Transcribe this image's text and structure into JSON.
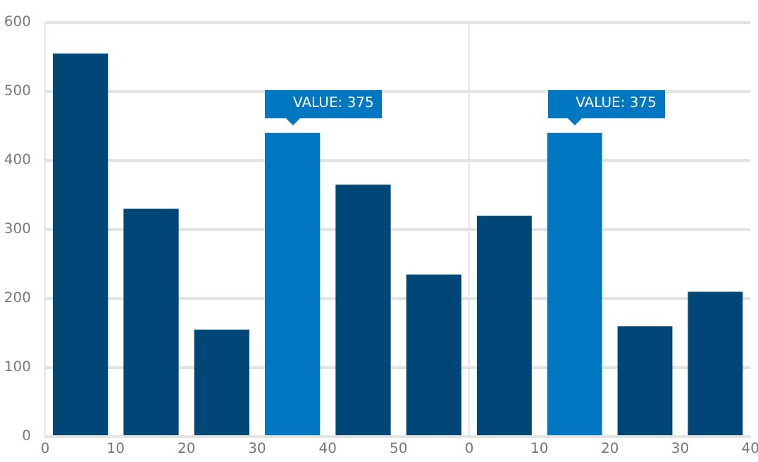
{
  "chart_data": [
    {
      "type": "histogram",
      "bins": [
        0,
        10,
        20,
        30,
        40,
        50,
        60
      ],
      "values": [
        555,
        330,
        155,
        440,
        365,
        235
      ],
      "colors": [
        "#004677",
        "#004677",
        "#004677",
        "#0077c0",
        "#004677",
        "#004677"
      ],
      "xlim": [
        0,
        60
      ],
      "xticks": [
        0,
        10,
        20,
        30,
        40,
        50
      ],
      "ylim": [
        0,
        600
      ],
      "yticks": [
        0,
        100,
        200,
        300,
        400,
        500,
        600
      ],
      "grid": "y",
      "annotations": [
        {
          "text": "VALUE: 375",
          "x": 35,
          "y": 440
        }
      ]
    },
    {
      "type": "histogram",
      "bins": [
        0,
        10,
        20,
        30,
        40
      ],
      "values": [
        320,
        440,
        160,
        210
      ],
      "colors": [
        "#004677",
        "#0077c0",
        "#004677",
        "#004677"
      ],
      "xlim": [
        0,
        40
      ],
      "xticks": [
        0,
        10,
        20,
        30,
        40
      ],
      "ylim": [
        0,
        600
      ],
      "yticks": [
        0,
        100,
        200,
        300,
        400,
        500,
        600
      ],
      "grid": "y",
      "tick_labels": "x",
      "annotations": [
        {
          "text": "VALUE: 375",
          "x": 15,
          "y": 440
        }
      ]
    }
  ]
}
